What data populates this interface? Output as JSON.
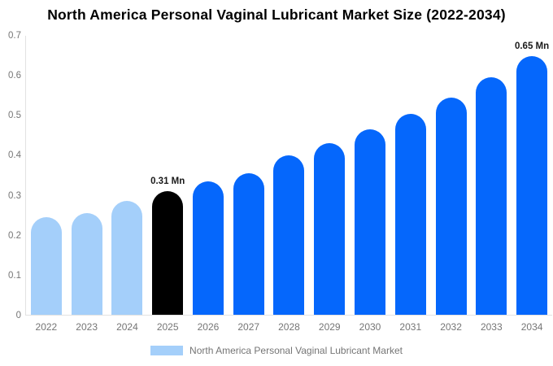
{
  "title": "North America Personal Vaginal Lubricant Market Size (2022-2034)",
  "chart_data": {
    "type": "bar",
    "title": "North America Personal Vaginal Lubricant Market Size (2022-2034)",
    "categories": [
      "2022",
      "2023",
      "2024",
      "2025",
      "2026",
      "2027",
      "2028",
      "2029",
      "2030",
      "2031",
      "2032",
      "2033",
      "2034"
    ],
    "values": [
      0.245,
      0.255,
      0.285,
      0.31,
      0.335,
      0.355,
      0.4,
      0.43,
      0.465,
      0.505,
      0.545,
      0.595,
      0.65
    ],
    "unit": "Mn",
    "bar_colors": [
      "#A4CFFA",
      "#A4CFFA",
      "#A4CFFA",
      "#000000",
      "#0567FC",
      "#0567FC",
      "#0567FC",
      "#0567FC",
      "#0567FC",
      "#0567FC",
      "#0567FC",
      "#0567FC",
      "#0567FC"
    ],
    "annotations": [
      {
        "category": "2025",
        "text": "0.31 Mn"
      },
      {
        "category": "2034",
        "text": "0.65 Mn"
      }
    ],
    "xlabel": "",
    "ylabel": "",
    "ylim": [
      0,
      0.7
    ],
    "yticks": [
      "0",
      "0.1",
      "0.2",
      "0.3",
      "0.4",
      "0.5",
      "0.6",
      "0.7"
    ],
    "grid": false,
    "legend_position": "bottom",
    "legend": [
      {
        "label": "North America Personal Vaginal Lubricant Market",
        "color": "#A4CFFA"
      }
    ]
  },
  "colors": {
    "historical_bar": "#A4CFFA",
    "base_year_bar": "#000000",
    "forecast_bar": "#0567FC",
    "axis_line": "#e2e2e2",
    "tick_label_text": "#757575",
    "annotation_text": "#1a1a1a",
    "title_text": "#000000",
    "background": "#ffffff"
  }
}
